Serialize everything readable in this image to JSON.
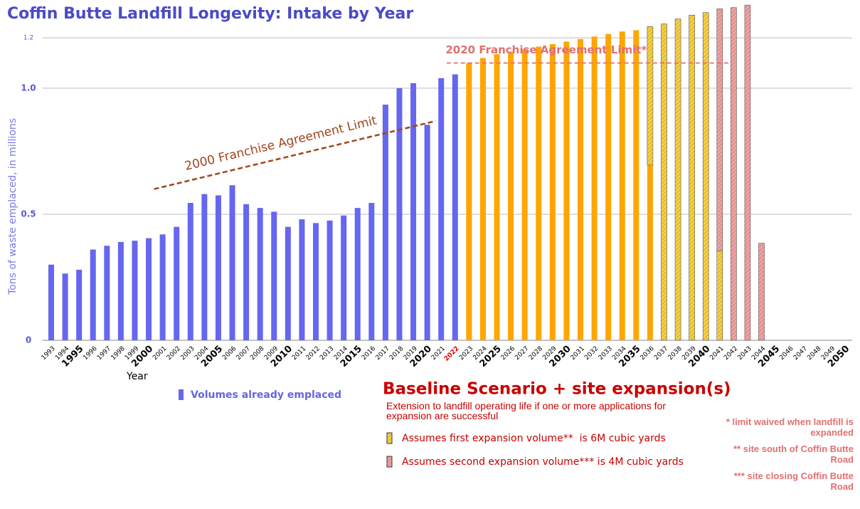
{
  "chart_data": {
    "type": "stacked_bar",
    "title": "Coffin Butte Landfill Longevity: Intake by Year",
    "y_axis_label": "Tons of waste emplaced, in millions",
    "x_axis_label": "Year",
    "categories": [
      "1993",
      "1994",
      "1995",
      "1996",
      "1997",
      "1998",
      "1999",
      "2000",
      "2001",
      "2002",
      "2003",
      "2004",
      "2005",
      "2006",
      "2007",
      "2008",
      "2009",
      "2010",
      "2011",
      "2012",
      "2013",
      "2014",
      "2015",
      "2016",
      "2017",
      "2018",
      "2019",
      "2020",
      "2021",
      "2022",
      "2023",
      "2024",
      "2025",
      "2026",
      "2027",
      "2028",
      "2029",
      "2030",
      "2031",
      "2032",
      "2033",
      "2034",
      "2035",
      "2036",
      "2037",
      "2038",
      "2039",
      "2040",
      "2041",
      "2042",
      "2043",
      "2044",
      "2045",
      "2046",
      "2047",
      "2048",
      "2049",
      "2050"
    ],
    "highlighted_category": "2022",
    "series": [
      {
        "name": "Volumes already emplaced",
        "color": "#6666f0",
        "hatch": false,
        "values": [
          0.3,
          0.265,
          0.28,
          0.36,
          0.375,
          0.39,
          0.395,
          0.405,
          0.42,
          0.45,
          0.545,
          0.58,
          0.575,
          0.615,
          0.54,
          0.525,
          0.51,
          0.45,
          0.48,
          0.465,
          0.475,
          0.495,
          0.525,
          0.545,
          0.935,
          1.0,
          1.02,
          0.855,
          1.04,
          1.055,
          null,
          null,
          null,
          null,
          null,
          null,
          null,
          null,
          null,
          null,
          null,
          null,
          null,
          null,
          null,
          null,
          null,
          null,
          null,
          null,
          null,
          null,
          null,
          null,
          null,
          null,
          null,
          null
        ]
      },
      {
        "name": "Baseline Scenario + site expansion(s)",
        "color": "#ffa500",
        "hatch": false,
        "values": [
          null,
          null,
          null,
          null,
          null,
          null,
          null,
          null,
          null,
          null,
          null,
          null,
          null,
          null,
          null,
          null,
          null,
          null,
          null,
          null,
          null,
          null,
          null,
          null,
          null,
          null,
          null,
          null,
          null,
          null,
          1.1,
          1.12,
          1.135,
          1.145,
          1.155,
          1.165,
          1.175,
          1.185,
          1.195,
          1.205,
          1.215,
          1.225,
          1.23,
          0.695,
          null,
          null,
          null,
          null,
          null,
          null,
          null,
          null,
          null,
          null,
          null,
          null,
          null,
          null
        ]
      },
      {
        "name": "Assumes first expansion volume**  is 6M cubic yards",
        "color": "#f5d23c",
        "hatch": true,
        "values": [
          null,
          null,
          null,
          null,
          null,
          null,
          null,
          null,
          null,
          null,
          null,
          null,
          null,
          null,
          null,
          null,
          null,
          null,
          null,
          null,
          null,
          null,
          null,
          null,
          null,
          null,
          null,
          null,
          null,
          null,
          null,
          null,
          null,
          null,
          null,
          null,
          null,
          null,
          null,
          null,
          null,
          null,
          null,
          0.55,
          1.255,
          1.275,
          1.29,
          1.3,
          0.355,
          null,
          null,
          null,
          null,
          null,
          null,
          null,
          null,
          null
        ]
      },
      {
        "name": "Assumes second expansion volume*** is 4M cubic yards",
        "color": "#f2a0a0",
        "hatch": true,
        "values": [
          null,
          null,
          null,
          null,
          null,
          null,
          null,
          null,
          null,
          null,
          null,
          null,
          null,
          null,
          null,
          null,
          null,
          null,
          null,
          null,
          null,
          null,
          null,
          null,
          null,
          null,
          null,
          null,
          null,
          null,
          null,
          null,
          null,
          null,
          null,
          null,
          null,
          null,
          null,
          null,
          null,
          null,
          null,
          null,
          null,
          null,
          null,
          null,
          0.96,
          1.32,
          1.33,
          0.385,
          null,
          null,
          null,
          null,
          null,
          null
        ]
      }
    ],
    "ylim": [
      0,
      1.35
    ],
    "yticks": [
      0,
      0.5,
      {
        "value": 1,
        "label": "1.0"
      },
      1.2
    ],
    "grid": true,
    "annotations": [
      {
        "text": "2000 Franchise Agreement Limit",
        "color": "#a0461e",
        "from": [
          "2001",
          0.6
        ],
        "to": [
          "2020",
          0.87
        ]
      },
      {
        "text": "2020 Franchise Agreement Limit*",
        "color": "#e07070",
        "from": [
          "2022",
          1.1
        ],
        "to": [
          "2041",
          1.1
        ]
      }
    ],
    "legend_note": "Extension to landfill operating life if one or more applications for expansion are successful",
    "footnotes": [
      "* limit waived when landfill is expanded",
      "** site south of Coffin Butte Road",
      "*** site closing Coffin Butte Road"
    ]
  }
}
